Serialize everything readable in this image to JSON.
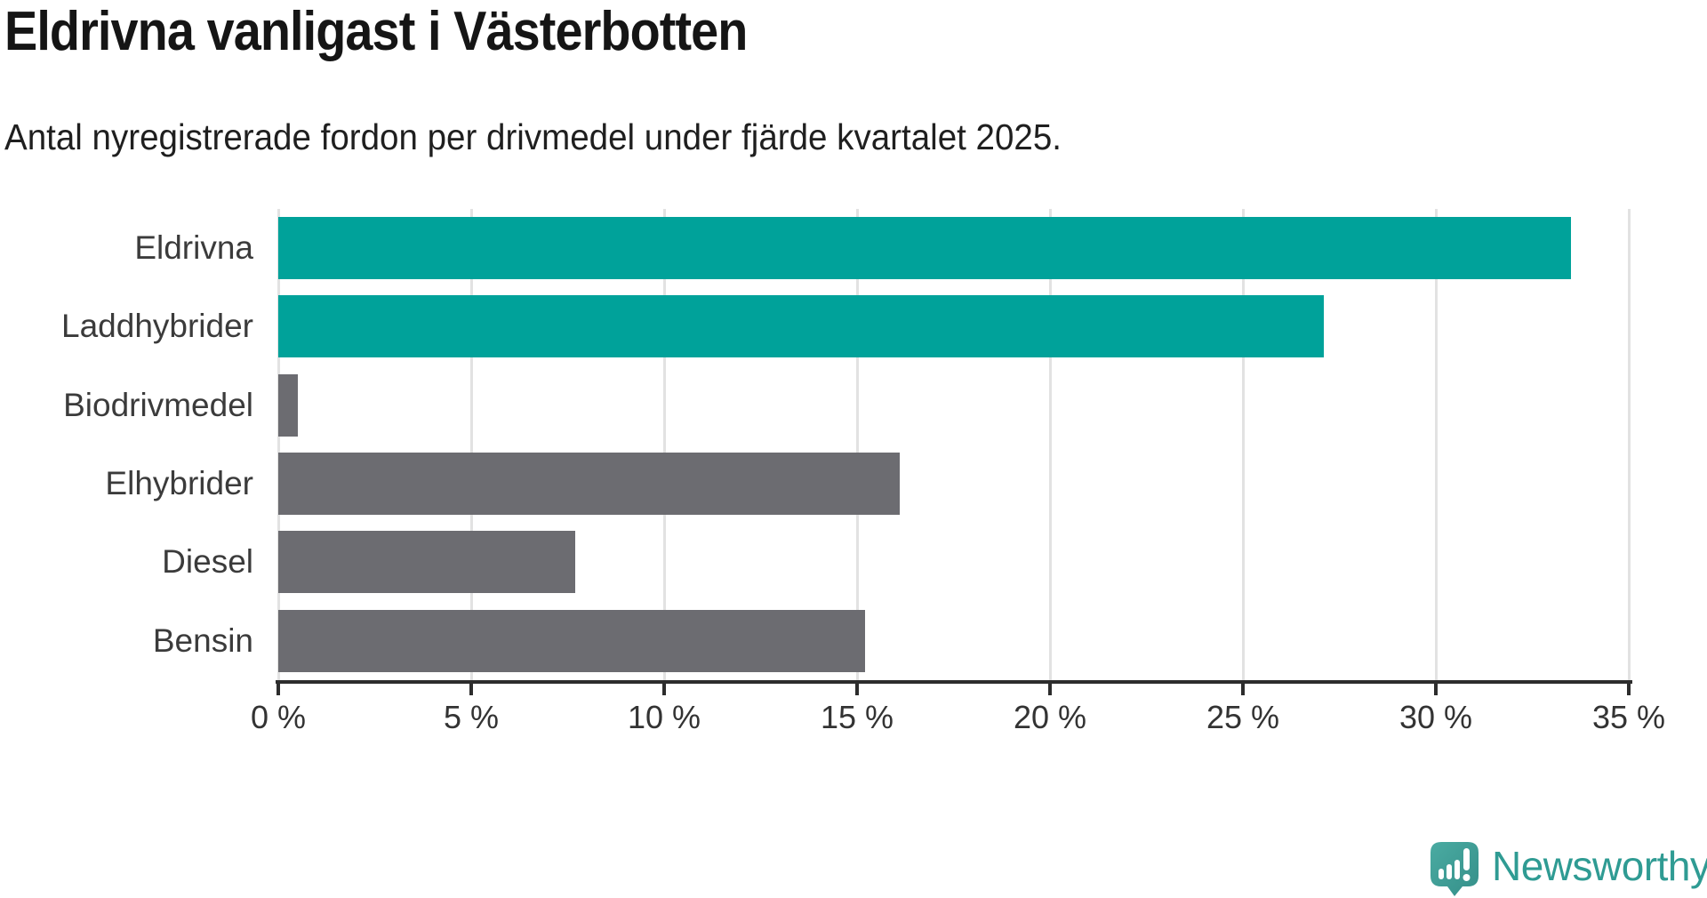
{
  "chart_data": {
    "type": "bar",
    "orientation": "horizontal",
    "title": "Eldrivna vanligast i Västerbotten",
    "subtitle": "Antal nyregistrerade fordon per drivmedel under fjärde kvartalet 2025.",
    "categories": [
      "Eldrivna",
      "Laddhybrider",
      "Biodrivmedel",
      "Elhybrider",
      "Diesel",
      "Bensin"
    ],
    "values": [
      33.5,
      27.1,
      0.5,
      16.1,
      7.7,
      15.2
    ],
    "highlighted": [
      true,
      true,
      false,
      false,
      false,
      false
    ],
    "unit": "%",
    "xlabel": "",
    "ylabel": "",
    "xlim": [
      0,
      35
    ],
    "x_ticks": [
      0,
      5,
      10,
      15,
      20,
      25,
      30,
      35
    ],
    "x_tick_labels": [
      "0 %",
      "5 %",
      "10 %",
      "15 %",
      "20 %",
      "25 %",
      "30 %",
      "35 %"
    ],
    "grid": "vertical-only",
    "legend": "none"
  },
  "colors": {
    "bar_highlight": "#00a29a",
    "bar_default": "#6c6c71",
    "gridline": "#e2e2e2",
    "axis": "#2d2d2d",
    "title_text": "#151515",
    "subtitle_text": "#1f1f1f",
    "category_text": "#3b3b3b",
    "tick_text": "#333333",
    "logo_teal": "#2f9b93"
  },
  "branding": {
    "logo_text": "Newsworthy",
    "logo_icon": "newsworthy-speech-bubble-chart-icon"
  }
}
